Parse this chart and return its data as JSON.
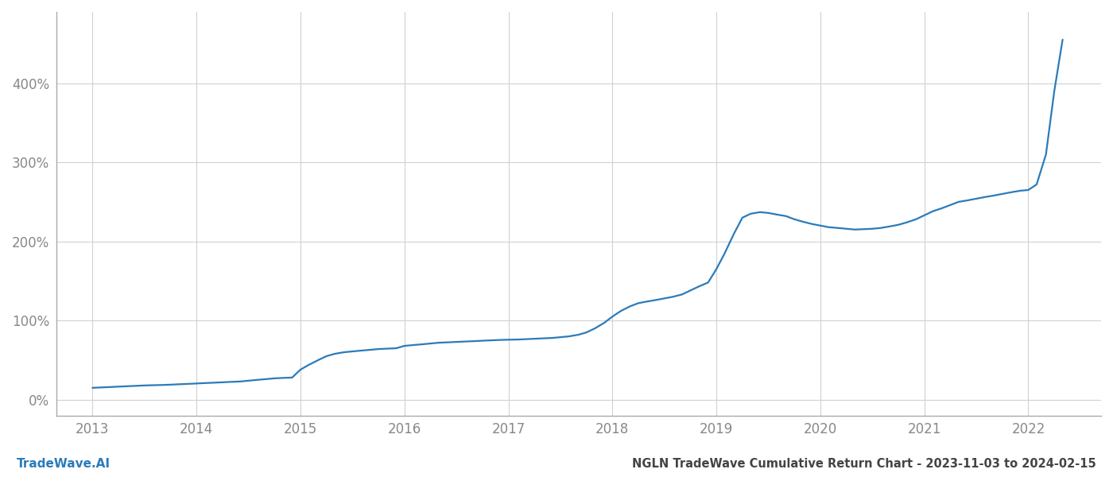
{
  "title": "NGLN TradeWave Cumulative Return Chart - 2023-11-03 to 2024-02-15",
  "watermark": "TradeWave.AI",
  "line_color": "#2b7bba",
  "background_color": "#ffffff",
  "grid_color": "#d0d0d0",
  "x_years": [
    2013,
    2014,
    2015,
    2016,
    2017,
    2018,
    2019,
    2020,
    2021,
    2022
  ],
  "x_data": [
    2013.0,
    2013.08,
    2013.17,
    2013.25,
    2013.33,
    2013.42,
    2013.5,
    2013.58,
    2013.67,
    2013.75,
    2013.83,
    2013.92,
    2014.0,
    2014.08,
    2014.17,
    2014.25,
    2014.33,
    2014.42,
    2014.5,
    2014.58,
    2014.67,
    2014.75,
    2014.83,
    2014.92,
    2015.0,
    2015.08,
    2015.17,
    2015.25,
    2015.33,
    2015.42,
    2015.5,
    2015.58,
    2015.67,
    2015.75,
    2015.83,
    2015.92,
    2016.0,
    2016.08,
    2016.17,
    2016.25,
    2016.33,
    2016.42,
    2016.5,
    2016.58,
    2016.67,
    2016.75,
    2016.83,
    2016.92,
    2017.0,
    2017.08,
    2017.17,
    2017.25,
    2017.33,
    2017.42,
    2017.5,
    2017.58,
    2017.67,
    2017.75,
    2017.83,
    2017.92,
    2018.0,
    2018.08,
    2018.17,
    2018.25,
    2018.33,
    2018.42,
    2018.5,
    2018.58,
    2018.67,
    2018.75,
    2018.83,
    2018.92,
    2019.0,
    2019.08,
    2019.17,
    2019.25,
    2019.33,
    2019.42,
    2019.5,
    2019.58,
    2019.67,
    2019.75,
    2019.83,
    2019.92,
    2020.0,
    2020.08,
    2020.17,
    2020.25,
    2020.33,
    2020.42,
    2020.5,
    2020.58,
    2020.67,
    2020.75,
    2020.83,
    2020.92,
    2021.0,
    2021.08,
    2021.17,
    2021.25,
    2021.33,
    2021.42,
    2021.5,
    2021.58,
    2021.67,
    2021.75,
    2021.83,
    2021.92,
    2022.0,
    2022.08,
    2022.17,
    2022.25,
    2022.33
  ],
  "y_data": [
    15,
    15.5,
    16,
    16.5,
    17,
    17.5,
    18,
    18.3,
    18.6,
    19,
    19.5,
    20,
    20.5,
    21,
    21.5,
    22,
    22.5,
    23,
    24,
    25,
    26,
    27,
    27.5,
    28,
    38,
    44,
    50,
    55,
    58,
    60,
    61,
    62,
    63,
    64,
    64.5,
    65,
    68,
    69,
    70,
    71,
    72,
    72.5,
    73,
    73.5,
    74,
    74.5,
    75,
    75.5,
    75.8,
    76,
    76.5,
    77,
    77.5,
    78,
    79,
    80,
    82,
    85,
    90,
    97,
    105,
    112,
    118,
    122,
    124,
    126,
    128,
    130,
    133,
    138,
    143,
    148,
    165,
    185,
    210,
    230,
    235,
    237,
    236,
    234,
    232,
    228,
    225,
    222,
    220,
    218,
    217,
    216,
    215,
    215.5,
    216,
    217,
    219,
    221,
    224,
    228,
    233,
    238,
    242,
    246,
    250,
    252,
    254,
    256,
    258,
    260,
    262,
    264,
    265,
    272,
    310,
    390,
    455
  ],
  "ylim": [
    -20,
    490
  ],
  "xlim": [
    2012.65,
    2022.7
  ],
  "yticks": [
    0,
    100,
    200,
    300,
    400
  ],
  "ytick_labels": [
    "0%",
    "100%",
    "200%",
    "300%",
    "400%"
  ],
  "title_fontsize": 10.5,
  "watermark_fontsize": 11,
  "tick_color": "#888888",
  "tick_fontsize": 12,
  "line_width": 1.6,
  "left_spine_color": "#aaaaaa"
}
